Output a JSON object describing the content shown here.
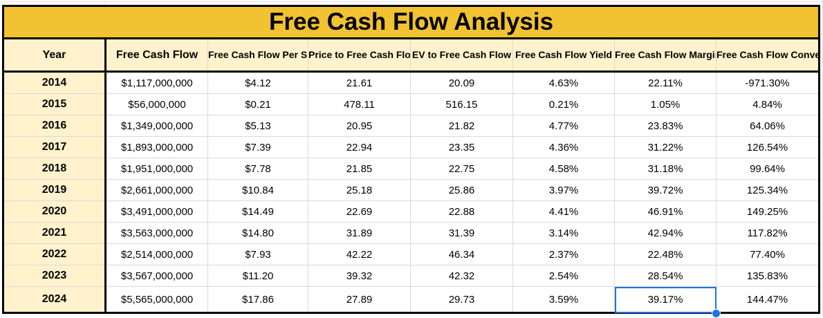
{
  "sheet": {
    "title": "Free Cash Flow Analysis",
    "columns": [
      "Year",
      "Free Cash Flow",
      "Free Cash Flow Per Share",
      "Price to Free Cash Flows Ratio",
      "EV to Free Cash Flow",
      "Free Cash Flow Yield",
      "Free Cash Flow Margin",
      "Free Cash Flow Conversion"
    ],
    "rows": [
      [
        "2014",
        "$1,117,000,000",
        "$4.12",
        "21.61",
        "20.09",
        "4.63%",
        "22.11%",
        "-971.30%"
      ],
      [
        "2015",
        "$56,000,000",
        "$0.21",
        "478.11",
        "516.15",
        "0.21%",
        "1.05%",
        "4.84%"
      ],
      [
        "2016",
        "$1,349,000,000",
        "$5.13",
        "20.95",
        "21.82",
        "4.77%",
        "23.83%",
        "64.06%"
      ],
      [
        "2017",
        "$1,893,000,000",
        "$7.39",
        "22.94",
        "23.35",
        "4.36%",
        "31.22%",
        "126.54%"
      ],
      [
        "2018",
        "$1,951,000,000",
        "$7.78",
        "21.85",
        "22.75",
        "4.58%",
        "31.18%",
        "99.64%"
      ],
      [
        "2019",
        "$2,661,000,000",
        "$10.84",
        "25.18",
        "25.86",
        "3.97%",
        "39.72%",
        "125.34%"
      ],
      [
        "2020",
        "$3,491,000,000",
        "$14.49",
        "22.69",
        "22.88",
        "4.41%",
        "46.91%",
        "149.25%"
      ],
      [
        "2021",
        "$3,563,000,000",
        "$14.80",
        "31.89",
        "31.39",
        "3.14%",
        "42.94%",
        "117.82%"
      ],
      [
        "2022",
        "$2,514,000,000",
        "$7.93",
        "42.22",
        "46.34",
        "2.37%",
        "22.48%",
        "77.40%"
      ],
      [
        "2023",
        "$3,567,000,000",
        "$11.20",
        "39.32",
        "42.32",
        "2.54%",
        "28.54%",
        "135.83%"
      ],
      [
        "2024",
        "$5,565,000,000",
        "$17.86",
        "27.89",
        "29.73",
        "3.59%",
        "39.17%",
        "144.47%"
      ]
    ],
    "colors": {
      "title_fill": "#f1c232",
      "header_fill": "#fff2cc",
      "selection": "#1a73e8"
    }
  }
}
